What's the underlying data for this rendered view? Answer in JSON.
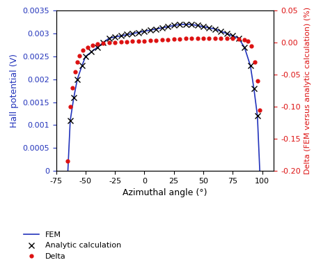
{
  "chart_data": {
    "type": "line",
    "xlabel": "Azimuthal angle (°)",
    "ylabel": "Hall potential (V)",
    "y2label": "Delta (FEM versus analytic calculation) (%)",
    "xlim": [
      -75,
      110
    ],
    "xticks": [
      -75,
      -50,
      -25,
      0,
      25,
      50,
      75,
      100
    ],
    "ylim": [
      0,
      0.0035
    ],
    "yticks": [
      0,
      0.0005,
      0.001,
      0.0015,
      0.002,
      0.0025,
      0.003,
      0.0035
    ],
    "y2lim": [
      -0.2,
      0.05
    ],
    "y2ticks": [
      {
        "value": -0.2,
        "label": "-0.20"
      },
      -0.15,
      {
        "value": -0.1,
        "label": "-0.10"
      },
      -0.05,
      {
        "value": 0,
        "label": "0.00"
      },
      0.05
    ],
    "legend": "lower left",
    "series": [
      {
        "name": "FEM",
        "color": "#2233bb",
        "marker": "none",
        "line_style": "solid",
        "x": [
          -65,
          -63,
          -60,
          -57,
          -53,
          -50,
          -45,
          -40,
          -30,
          -20,
          -10,
          0,
          10,
          20,
          30,
          40,
          50,
          60,
          70,
          80,
          85,
          90,
          93,
          96,
          98
        ],
        "values": [
          0,
          0.0011,
          0.0016,
          0.002,
          0.0023,
          0.0025,
          0.0026,
          0.0027,
          0.0029,
          0.00295,
          0.003,
          0.00305,
          0.0031,
          0.00315,
          0.0032,
          0.0032,
          0.00315,
          0.0031,
          0.003,
          0.0029,
          0.0027,
          0.0023,
          0.0018,
          0.0012,
          0
        ]
      },
      {
        "name": "Analytic calculation",
        "color": "#000000",
        "marker": "x",
        "line_style": "none",
        "x": [
          -63,
          -60,
          -57,
          -53,
          -50,
          -45,
          -40,
          -35,
          -30,
          -25,
          -20,
          -15,
          -10,
          -5,
          0,
          5,
          10,
          15,
          20,
          25,
          30,
          35,
          40,
          45,
          50,
          55,
          60,
          65,
          70,
          75,
          80,
          85,
          90,
          93,
          96
        ],
        "values": [
          0.0011,
          0.0016,
          0.002,
          0.0023,
          0.0025,
          0.0026,
          0.0027,
          0.0028,
          0.0029,
          0.00292,
          0.00295,
          0.00298,
          0.003,
          0.00302,
          0.00305,
          0.00308,
          0.0031,
          0.00313,
          0.00315,
          0.00318,
          0.0032,
          0.0032,
          0.0032,
          0.00318,
          0.00315,
          0.00313,
          0.0031,
          0.00305,
          0.003,
          0.00295,
          0.0029,
          0.0027,
          0.0023,
          0.0018,
          0.0012
        ]
      },
      {
        "name": "Delta",
        "color": "#dd1111",
        "marker": "o",
        "line_style": "none",
        "axis": "y2",
        "x": [
          -65,
          -63,
          -61,
          -59,
          -57,
          -55,
          -52,
          -48,
          -44,
          -40,
          -35,
          -30,
          -25,
          -20,
          -15,
          -10,
          -5,
          0,
          5,
          10,
          15,
          20,
          25,
          30,
          35,
          40,
          45,
          50,
          55,
          60,
          65,
          70,
          75,
          80,
          85,
          88,
          91,
          94,
          96,
          98
        ],
        "values": [
          -0.185,
          -0.1,
          -0.07,
          -0.045,
          -0.03,
          -0.02,
          -0.012,
          -0.007,
          -0.004,
          -0.002,
          -0.001,
          0.0,
          0.0005,
          0.001,
          0.0015,
          0.002,
          0.0025,
          0.003,
          0.0035,
          0.004,
          0.0045,
          0.005,
          0.0055,
          0.006,
          0.0065,
          0.007,
          0.007,
          0.007,
          0.007,
          0.007,
          0.007,
          0.007,
          0.0065,
          0.006,
          0.005,
          0.003,
          -0.005,
          -0.03,
          -0.06,
          -0.105
        ]
      }
    ]
  }
}
